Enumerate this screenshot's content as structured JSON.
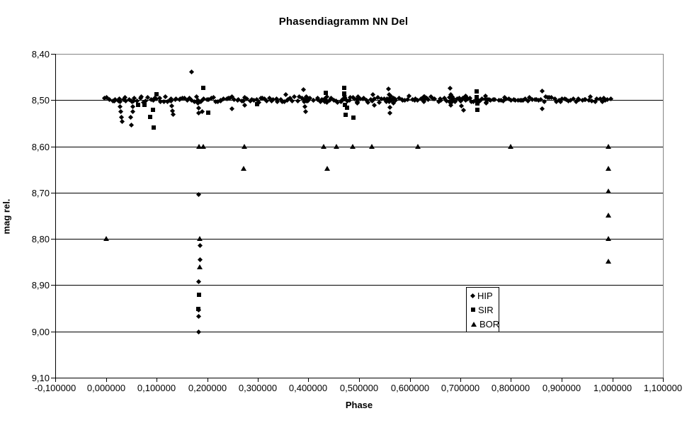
{
  "title": "Phasendiagramm NN Del",
  "axes": {
    "x_label": "Phase",
    "y_label": "mag rel.",
    "x_ticks": [
      "-0,100000",
      "0,000000",
      "0,100000",
      "0,200000",
      "0,300000",
      "0,400000",
      "0,500000",
      "0,600000",
      "0,700000",
      "0,800000",
      "0,900000",
      "1,000000",
      "1,100000"
    ],
    "y_ticks": [
      "8,40",
      "8,50",
      "8,60",
      "8,70",
      "8,80",
      "8,90",
      "9,00",
      "9,10"
    ]
  },
  "legend": {
    "position": "right-center-inside",
    "items": [
      {
        "label": "HIP",
        "marker": "diamond"
      },
      {
        "label": "SIR",
        "marker": "square"
      },
      {
        "label": "BOR",
        "marker": "triangle"
      }
    ]
  },
  "chart_data": {
    "type": "scatter",
    "title": "Phasendiagramm NN Del",
    "xlabel": "Phase",
    "ylabel": "mag rel.",
    "xlim": [
      -0.1,
      1.1
    ],
    "ylim": [
      8.4,
      9.1
    ],
    "y_axis_inverted_magnitudes": true,
    "x_tick_values": [
      -0.1,
      0.0,
      0.1,
      0.2,
      0.3,
      0.4,
      0.5,
      0.6,
      0.7,
      0.8,
      0.9,
      1.0,
      1.1
    ],
    "y_tick_values": [
      8.4,
      8.5,
      8.6,
      8.7,
      8.8,
      8.9,
      9.0,
      9.1
    ],
    "gridline_mags": [
      8.5,
      8.6,
      8.7,
      8.8,
      8.9,
      9.0
    ],
    "grid": "horizontal-only",
    "colors": {
      "marker": "#000000",
      "gridline": "#000000",
      "plot_border": "#848484",
      "background": "#ffffff"
    },
    "series": [
      {
        "name": "HIP",
        "marker": "diamond",
        "dense_band": {
          "comment": "solid band of overlapping points along mag 8.50 from phase 0 to 1",
          "phase_start": 0.0,
          "phase_end": 0.997,
          "count": 235,
          "mag_center": 8.5,
          "mag_spread": 0.004,
          "phase_jitter": 0.002,
          "seed": 42,
          "bump_phases": [
            0.185,
            0.4,
            0.435,
            0.5,
            0.565,
            0.63,
            0.685,
            0.71,
            0.755
          ]
        },
        "points": [
          [
            0.171,
            8.44
          ],
          [
            0.029,
            8.505
          ],
          [
            0.03,
            8.516
          ],
          [
            0.031,
            8.527
          ],
          [
            0.032,
            8.538
          ],
          [
            0.034,
            8.548
          ],
          [
            0.053,
            8.505
          ],
          [
            0.054,
            8.516
          ],
          [
            0.055,
            8.527
          ],
          [
            0.051,
            8.538
          ],
          [
            0.052,
            8.556
          ],
          [
            0.13,
            8.503
          ],
          [
            0.131,
            8.514
          ],
          [
            0.133,
            8.525
          ],
          [
            0.134,
            8.533
          ],
          [
            0.183,
            8.508
          ],
          [
            0.184,
            8.519
          ],
          [
            0.185,
            8.53
          ],
          [
            0.191,
            8.527
          ],
          [
            0.184,
            8.706
          ],
          [
            0.187,
            8.816
          ],
          [
            0.187,
            8.847
          ],
          [
            0.184,
            8.894
          ],
          [
            0.185,
            8.955
          ],
          [
            0.184,
            8.969
          ],
          [
            0.184,
            9.002
          ],
          [
            0.251,
            8.52
          ],
          [
            0.276,
            8.512
          ],
          [
            0.356,
            8.49
          ],
          [
            0.392,
            8.479
          ],
          [
            0.393,
            8.505
          ],
          [
            0.395,
            8.516
          ],
          [
            0.396,
            8.527
          ],
          [
            0.529,
            8.489
          ],
          [
            0.531,
            8.512
          ],
          [
            0.56,
            8.477
          ],
          [
            0.561,
            8.49
          ],
          [
            0.561,
            8.505
          ],
          [
            0.562,
            8.517
          ],
          [
            0.562,
            8.53
          ],
          [
            0.681,
            8.476
          ],
          [
            0.682,
            8.489
          ],
          [
            0.682,
            8.503
          ],
          [
            0.683,
            8.513
          ],
          [
            0.702,
            8.503
          ],
          [
            0.704,
            8.514
          ],
          [
            0.708,
            8.524
          ],
          [
            0.863,
            8.482
          ],
          [
            0.863,
            8.521
          ]
        ]
      },
      {
        "name": "SIR",
        "marker": "square",
        "points": [
          [
            0.064,
            8.51
          ],
          [
            0.076,
            8.511
          ],
          [
            0.088,
            8.537
          ],
          [
            0.093,
            8.521
          ],
          [
            0.094,
            8.56
          ],
          [
            0.1,
            8.488
          ],
          [
            0.192,
            8.473
          ],
          [
            0.202,
            8.527
          ],
          [
            0.298,
            8.508
          ],
          [
            0.434,
            8.485
          ],
          [
            0.471,
            8.474
          ],
          [
            0.471,
            8.486
          ],
          [
            0.472,
            8.498
          ],
          [
            0.472,
            8.51
          ],
          [
            0.476,
            8.516
          ],
          [
            0.474,
            8.531
          ],
          [
            0.489,
            8.538
          ],
          [
            0.732,
            8.481
          ],
          [
            0.732,
            8.494
          ],
          [
            0.733,
            8.507
          ],
          [
            0.733,
            8.521
          ],
          [
            0.184,
            8.921
          ],
          [
            0.183,
            8.951
          ]
        ]
      },
      {
        "name": "BOR",
        "marker": "triangle",
        "points": [
          [
            0.0,
            8.799
          ],
          [
            0.183,
            8.6
          ],
          [
            0.191,
            8.6
          ],
          [
            0.184,
            8.799
          ],
          [
            0.184,
            8.861
          ],
          [
            0.271,
            8.648
          ],
          [
            0.273,
            8.6
          ],
          [
            0.429,
            8.6
          ],
          [
            0.436,
            8.648
          ],
          [
            0.455,
            8.6
          ],
          [
            0.487,
            8.6
          ],
          [
            0.524,
            8.6
          ],
          [
            0.615,
            8.6
          ],
          [
            0.798,
            8.6
          ],
          [
            0.991,
            8.6
          ],
          [
            0.991,
            8.648
          ],
          [
            0.991,
            8.697
          ],
          [
            0.991,
            8.748
          ],
          [
            0.992,
            8.799
          ],
          [
            0.992,
            8.848
          ]
        ]
      }
    ]
  }
}
